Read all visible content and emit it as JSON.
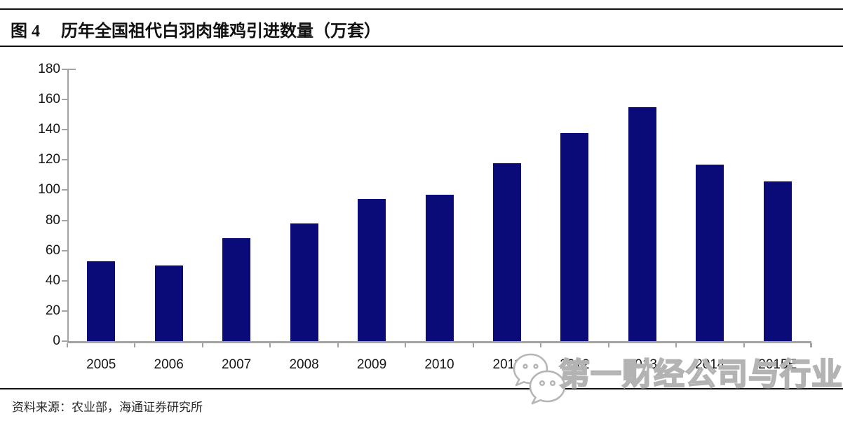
{
  "figure": {
    "label": "图 4",
    "title": "历年全国祖代白羽肉雏鸡引进数量（万套）"
  },
  "chart_data": {
    "type": "bar",
    "title": "历年全国祖代白羽肉雏鸡引进数量（万套）",
    "categories": [
      "2005",
      "2006",
      "2007",
      "2008",
      "2009",
      "2010",
      "2011",
      "2012",
      "2013",
      "2014",
      "2015E"
    ],
    "values": [
      53,
      50,
      68,
      78,
      94,
      97,
      118,
      138,
      155,
      117,
      106
    ],
    "xlabel": "",
    "ylabel": "",
    "ylim": [
      0,
      180
    ],
    "yticks": [
      0,
      20,
      40,
      60,
      80,
      100,
      120,
      140,
      160,
      180
    ],
    "grid": false,
    "legend": false,
    "bar_color": "#0a0a78",
    "axis_color": "#a3a3a3"
  },
  "watermark": {
    "icon": "wechat-icon",
    "text": "第一财经公司与行业",
    "outline_color": "#b3b3b3"
  },
  "footer": {
    "source": "资料来源：农业部，海通证券研究所"
  }
}
